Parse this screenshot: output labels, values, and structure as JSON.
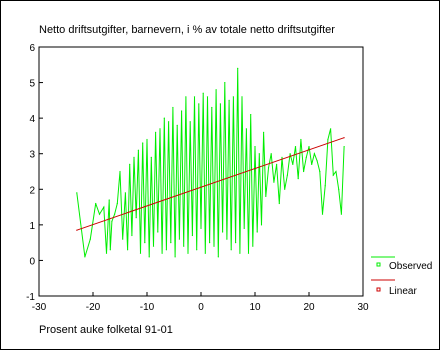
{
  "chart_data": {
    "type": "line",
    "title": "Netto driftsutgifter, barnevern, i % av totale netto driftsutgifter",
    "xlabel": "Prosent auke folketal 91-01",
    "ylabel": "",
    "xlim": [
      -30,
      30
    ],
    "ylim": [
      -1,
      6
    ],
    "xticks": [
      "-30",
      "-20",
      "-10",
      "0",
      "10",
      "20",
      "30"
    ],
    "yticks": [
      "-1",
      "0",
      "1",
      "2",
      "3",
      "4",
      "5",
      "6"
    ],
    "grid": false,
    "legend_position": "bottom-right",
    "series": [
      {
        "name": "Observed",
        "color": "#00ee00",
        "x": [
          -23.0,
          -21.5,
          -20.5,
          -19.5,
          -18.8,
          -18.0,
          -17.5,
          -17.0,
          -16.8,
          -16.5,
          -16.0,
          -15.5,
          -15.0,
          -14.5,
          -14.0,
          -13.6,
          -13.2,
          -12.8,
          -12.4,
          -12.0,
          -11.6,
          -11.2,
          -10.8,
          -10.4,
          -10.0,
          -9.6,
          -9.2,
          -8.8,
          -8.4,
          -8.0,
          -7.6,
          -7.2,
          -6.8,
          -6.4,
          -6.0,
          -5.6,
          -5.2,
          -4.8,
          -4.4,
          -4.0,
          -3.6,
          -3.2,
          -2.8,
          -2.4,
          -2.0,
          -1.6,
          -1.2,
          -0.8,
          -0.4,
          0.0,
          0.4,
          0.8,
          1.2,
          1.6,
          2.0,
          2.4,
          2.8,
          3.2,
          3.6,
          4.0,
          4.4,
          4.8,
          5.2,
          5.6,
          6.0,
          6.4,
          6.8,
          7.2,
          7.6,
          8.0,
          8.4,
          8.8,
          9.2,
          9.6,
          10.0,
          10.4,
          10.8,
          11.2,
          11.6,
          12.0,
          12.5,
          13.0,
          13.5,
          14.0,
          14.5,
          15.0,
          15.5,
          16.0,
          16.5,
          17.0,
          17.5,
          18.0,
          18.5,
          19.0,
          19.5,
          20.0,
          20.5,
          21.0,
          21.5,
          22.0,
          22.5,
          23.0,
          23.5,
          24.0,
          24.5,
          25.0,
          25.5,
          26.0,
          26.5
        ],
        "values": [
          1.9,
          0.1,
          0.6,
          1.6,
          1.3,
          1.5,
          0.2,
          1.7,
          0.3,
          1.1,
          1.3,
          1.6,
          2.5,
          0.6,
          1.9,
          0.3,
          2.7,
          0.7,
          2.9,
          1.2,
          3.1,
          0.2,
          3.3,
          0.5,
          3.4,
          0.1,
          2.9,
          0.4,
          3.6,
          0.8,
          3.7,
          0.2,
          4.0,
          0.3,
          3.9,
          0.5,
          4.3,
          0.1,
          3.8,
          0.6,
          4.2,
          0.4,
          4.6,
          0.2,
          3.9,
          0.7,
          4.6,
          0.3,
          4.4,
          0.9,
          4.7,
          0.2,
          4.6,
          0.5,
          4.3,
          0.4,
          4.8,
          0.1,
          4.4,
          0.8,
          5.0,
          0.6,
          4.5,
          0.3,
          4.6,
          0.5,
          5.4,
          0.2,
          4.6,
          0.9,
          3.7,
          0.2,
          4.1,
          0.4,
          3.2,
          0.8,
          3.0,
          1.0,
          3.6,
          1.8,
          2.6,
          3.0,
          2.2,
          2.7,
          1.6,
          2.9,
          2.0,
          2.4,
          3.0,
          2.7,
          3.2,
          2.3,
          3.4,
          2.5,
          2.9,
          3.2,
          2.7,
          3.0,
          2.8,
          2.5,
          1.3,
          2.1,
          3.4,
          3.7,
          2.4,
          2.5,
          2.0,
          1.3,
          3.2
        ]
      },
      {
        "name": "Linear",
        "color": "#cc0000",
        "x": [
          -23.0,
          26.5
        ],
        "values": [
          0.85,
          3.45
        ]
      }
    ]
  }
}
